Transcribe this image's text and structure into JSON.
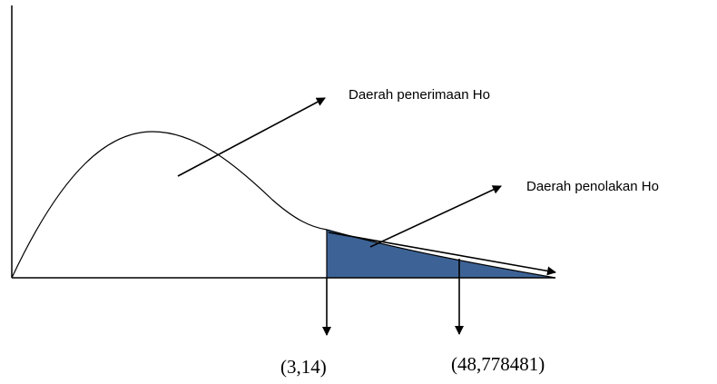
{
  "diagram": {
    "labels": {
      "acceptance_region": "Daerah penerimaan Ho",
      "rejection_region": "Daerah penolakan Ho"
    },
    "values": {
      "critical_value": "(3,14)",
      "computed_value": "(48,778481)"
    },
    "colors": {
      "rejection_fill": "#3d6396",
      "line": "#000000",
      "background": "#ffffff"
    }
  }
}
